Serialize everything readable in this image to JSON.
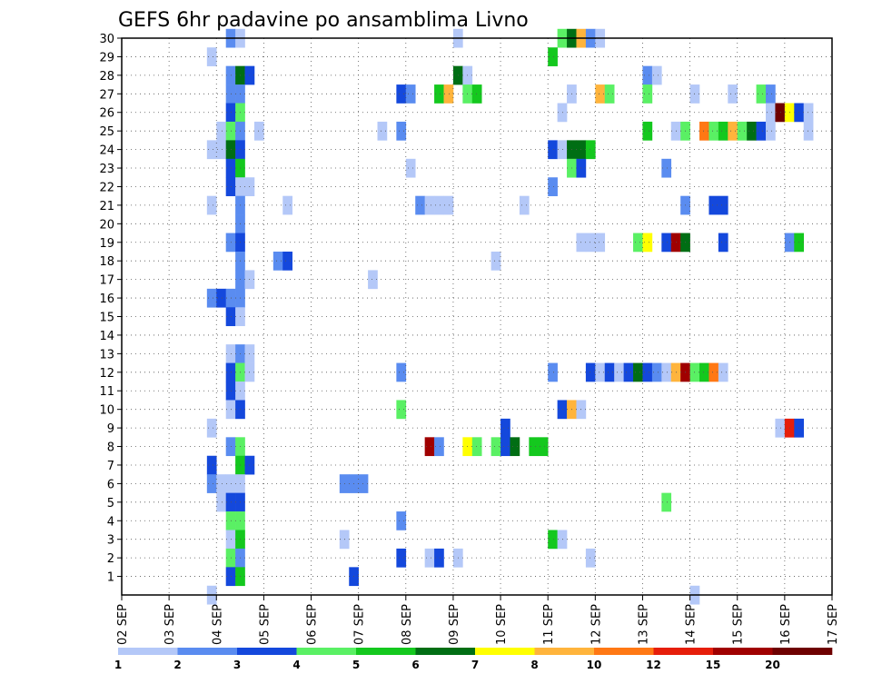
{
  "chart_data": {
    "type": "heatmap",
    "title": "GEFS 6hr padavine po ansamblima Livno",
    "y_labels": [
      "1",
      "2",
      "3",
      "4",
      "5",
      "6",
      "7",
      "8",
      "9",
      "10",
      "11",
      "12",
      "13",
      "14",
      "15",
      "16",
      "17",
      "18",
      "19",
      "20",
      "21",
      "22",
      "23",
      "24",
      "25",
      "26",
      "27",
      "28",
      "29",
      "30"
    ],
    "x_labels": [
      "02 SEP",
      "03 SEP",
      "04 SEP",
      "05 SEP",
      "06 SEP",
      "07 SEP",
      "08 SEP",
      "09 SEP",
      "10 SEP",
      "11 SEP",
      "12 SEP",
      "13 SEP",
      "14 SEP",
      "15 SEP",
      "16 SEP",
      "17 SEP"
    ],
    "grid": true,
    "legend": {
      "position": "bottom",
      "labels": [
        "1",
        "2",
        "3",
        "4",
        "5",
        "6",
        "7",
        "8",
        "10",
        "12",
        "15",
        "20"
      ],
      "colors": [
        "#b4c8f8",
        "#5a8cf0",
        "#1448dc",
        "#5af064",
        "#14c81e",
        "#006e14",
        "#ffff00",
        "#ffb43c",
        "#ff7814",
        "#e61e0a",
        "#a00000",
        "#6e0000"
      ]
    },
    "cells": [
      {
        "member": 30,
        "step": 11,
        "level": 2
      },
      {
        "member": 30,
        "step": 12,
        "level": 1
      },
      {
        "member": 30,
        "step": 35,
        "level": 1
      },
      {
        "member": 30,
        "step": 46,
        "level": 4
      },
      {
        "member": 30,
        "step": 47,
        "level": 6
      },
      {
        "member": 30,
        "step": 48,
        "level": 8
      },
      {
        "member": 30,
        "step": 49,
        "level": 2
      },
      {
        "member": 30,
        "step": 50,
        "level": 1
      },
      {
        "member": 29,
        "step": 9,
        "level": 1
      },
      {
        "member": 29,
        "step": 45,
        "level": 5
      },
      {
        "member": 28,
        "step": 11,
        "level": 2
      },
      {
        "member": 28,
        "step": 12,
        "level": 6
      },
      {
        "member": 28,
        "step": 13,
        "level": 3
      },
      {
        "member": 28,
        "step": 35,
        "level": 6
      },
      {
        "member": 28,
        "step": 36,
        "level": 1
      },
      {
        "member": 28,
        "step": 55,
        "level": 2
      },
      {
        "member": 28,
        "step": 56,
        "level": 1
      },
      {
        "member": 27,
        "step": 11,
        "level": 2
      },
      {
        "member": 27,
        "step": 12,
        "level": 2
      },
      {
        "member": 27,
        "step": 29,
        "level": 3
      },
      {
        "member": 27,
        "step": 30,
        "level": 2
      },
      {
        "member": 27,
        "step": 33,
        "level": 5
      },
      {
        "member": 27,
        "step": 34,
        "level": 8
      },
      {
        "member": 27,
        "step": 36,
        "level": 4
      },
      {
        "member": 27,
        "step": 37,
        "level": 5
      },
      {
        "member": 27,
        "step": 47,
        "level": 1
      },
      {
        "member": 27,
        "step": 50,
        "level": 8
      },
      {
        "member": 27,
        "step": 51,
        "level": 4
      },
      {
        "member": 27,
        "step": 55,
        "level": 4
      },
      {
        "member": 27,
        "step": 60,
        "level": 1
      },
      {
        "member": 27,
        "step": 64,
        "level": 1
      },
      {
        "member": 27,
        "step": 67,
        "level": 4
      },
      {
        "member": 27,
        "step": 68,
        "level": 2
      },
      {
        "member": 26,
        "step": 11,
        "level": 3
      },
      {
        "member": 26,
        "step": 12,
        "level": 4
      },
      {
        "member": 26,
        "step": 46,
        "level": 1
      },
      {
        "member": 26,
        "step": 68,
        "level": 1
      },
      {
        "member": 26,
        "step": 69,
        "level": 12
      },
      {
        "member": 26,
        "step": 70,
        "level": 7
      },
      {
        "member": 26,
        "step": 71,
        "level": 3
      },
      {
        "member": 26,
        "step": 72,
        "level": 1
      },
      {
        "member": 25,
        "step": 10,
        "level": 1
      },
      {
        "member": 25,
        "step": 11,
        "level": 4
      },
      {
        "member": 25,
        "step": 12,
        "level": 2
      },
      {
        "member": 25,
        "step": 14,
        "level": 1
      },
      {
        "member": 25,
        "step": 27,
        "level": 1
      },
      {
        "member": 25,
        "step": 29,
        "level": 2
      },
      {
        "member": 25,
        "step": 55,
        "level": 5
      },
      {
        "member": 25,
        "step": 58,
        "level": 1
      },
      {
        "member": 25,
        "step": 59,
        "level": 4
      },
      {
        "member": 25,
        "step": 61,
        "level": 9
      },
      {
        "member": 25,
        "step": 62,
        "level": 4
      },
      {
        "member": 25,
        "step": 63,
        "level": 5
      },
      {
        "member": 25,
        "step": 64,
        "level": 8
      },
      {
        "member": 25,
        "step": 65,
        "level": 4
      },
      {
        "member": 25,
        "step": 66,
        "level": 6
      },
      {
        "member": 25,
        "step": 67,
        "level": 3
      },
      {
        "member": 25,
        "step": 68,
        "level": 1
      },
      {
        "member": 25,
        "step": 72,
        "level": 1
      },
      {
        "member": 24,
        "step": 9,
        "level": 1
      },
      {
        "member": 24,
        "step": 10,
        "level": 1
      },
      {
        "member": 24,
        "step": 11,
        "level": 6
      },
      {
        "member": 24,
        "step": 12,
        "level": 3
      },
      {
        "member": 24,
        "step": 45,
        "level": 3
      },
      {
        "member": 24,
        "step": 46,
        "level": 1
      },
      {
        "member": 24,
        "step": 47,
        "level": 6
      },
      {
        "member": 24,
        "step": 48,
        "level": 6
      },
      {
        "member": 24,
        "step": 49,
        "level": 5
      },
      {
        "member": 23,
        "step": 11,
        "level": 3
      },
      {
        "member": 23,
        "step": 12,
        "level": 5
      },
      {
        "member": 23,
        "step": 30,
        "level": 1
      },
      {
        "member": 23,
        "step": 47,
        "level": 4
      },
      {
        "member": 23,
        "step": 48,
        "level": 3
      },
      {
        "member": 23,
        "step": 57,
        "level": 2
      },
      {
        "member": 22,
        "step": 11,
        "level": 3
      },
      {
        "member": 22,
        "step": 12,
        "level": 1
      },
      {
        "member": 22,
        "step": 13,
        "level": 1
      },
      {
        "member": 22,
        "step": 45,
        "level": 2
      },
      {
        "member": 21,
        "step": 9,
        "level": 1
      },
      {
        "member": 21,
        "step": 12,
        "level": 2
      },
      {
        "member": 21,
        "step": 17,
        "level": 1
      },
      {
        "member": 21,
        "step": 31,
        "level": 2
      },
      {
        "member": 21,
        "step": 32,
        "level": 1
      },
      {
        "member": 21,
        "step": 33,
        "level": 1
      },
      {
        "member": 21,
        "step": 34,
        "level": 1
      },
      {
        "member": 21,
        "step": 42,
        "level": 1
      },
      {
        "member": 21,
        "step": 59,
        "level": 2
      },
      {
        "member": 21,
        "step": 62,
        "level": 3
      },
      {
        "member": 21,
        "step": 63,
        "level": 3
      },
      {
        "member": 20,
        "step": 12,
        "level": 2
      },
      {
        "member": 19,
        "step": 11,
        "level": 2
      },
      {
        "member": 19,
        "step": 12,
        "level": 3
      },
      {
        "member": 19,
        "step": 48,
        "level": 1
      },
      {
        "member": 19,
        "step": 49,
        "level": 1
      },
      {
        "member": 19,
        "step": 50,
        "level": 1
      },
      {
        "member": 19,
        "step": 54,
        "level": 4
      },
      {
        "member": 19,
        "step": 55,
        "level": 7
      },
      {
        "member": 19,
        "step": 57,
        "level": 3
      },
      {
        "member": 19,
        "step": 58,
        "level": 11
      },
      {
        "member": 19,
        "step": 59,
        "level": 6
      },
      {
        "member": 19,
        "step": 63,
        "level": 3
      },
      {
        "member": 19,
        "step": 70,
        "level": 2
      },
      {
        "member": 19,
        "step": 71,
        "level": 5
      },
      {
        "member": 18,
        "step": 12,
        "level": 2
      },
      {
        "member": 18,
        "step": 16,
        "level": 2
      },
      {
        "member": 18,
        "step": 17,
        "level": 3
      },
      {
        "member": 18,
        "step": 39,
        "level": 1
      },
      {
        "member": 17,
        "step": 12,
        "level": 2
      },
      {
        "member": 17,
        "step": 13,
        "level": 1
      },
      {
        "member": 17,
        "step": 26,
        "level": 1
      },
      {
        "member": 16,
        "step": 9,
        "level": 2
      },
      {
        "member": 16,
        "step": 10,
        "level": 3
      },
      {
        "member": 16,
        "step": 11,
        "level": 2
      },
      {
        "member": 16,
        "step": 12,
        "level": 2
      },
      {
        "member": 15,
        "step": 11,
        "level": 3
      },
      {
        "member": 15,
        "step": 12,
        "level": 1
      },
      {
        "member": 13,
        "step": 11,
        "level": 1
      },
      {
        "member": 13,
        "step": 12,
        "level": 2
      },
      {
        "member": 13,
        "step": 13,
        "level": 1
      },
      {
        "member": 12,
        "step": 11,
        "level": 3
      },
      {
        "member": 12,
        "step": 12,
        "level": 4
      },
      {
        "member": 12,
        "step": 13,
        "level": 1
      },
      {
        "member": 12,
        "step": 29,
        "level": 2
      },
      {
        "member": 12,
        "step": 45,
        "level": 2
      },
      {
        "member": 12,
        "step": 49,
        "level": 3
      },
      {
        "member": 12,
        "step": 50,
        "level": 1
      },
      {
        "member": 12,
        "step": 51,
        "level": 3
      },
      {
        "member": 12,
        "step": 52,
        "level": 1
      },
      {
        "member": 12,
        "step": 53,
        "level": 3
      },
      {
        "member": 12,
        "step": 54,
        "level": 6
      },
      {
        "member": 12,
        "step": 55,
        "level": 3
      },
      {
        "member": 12,
        "step": 56,
        "level": 2
      },
      {
        "member": 12,
        "step": 57,
        "level": 1
      },
      {
        "member": 12,
        "step": 58,
        "level": 8
      },
      {
        "member": 12,
        "step": 59,
        "level": 11
      },
      {
        "member": 12,
        "step": 60,
        "level": 4
      },
      {
        "member": 12,
        "step": 61,
        "level": 5
      },
      {
        "member": 12,
        "step": 62,
        "level": 9
      },
      {
        "member": 12,
        "step": 63,
        "level": 1
      },
      {
        "member": 11,
        "step": 11,
        "level": 3
      },
      {
        "member": 11,
        "step": 12,
        "level": 1
      },
      {
        "member": 10,
        "step": 11,
        "level": 1
      },
      {
        "member": 10,
        "step": 12,
        "level": 3
      },
      {
        "member": 10,
        "step": 29,
        "level": 4
      },
      {
        "member": 10,
        "step": 46,
        "level": 3
      },
      {
        "member": 10,
        "step": 47,
        "level": 8
      },
      {
        "member": 10,
        "step": 48,
        "level": 1
      },
      {
        "member": 9,
        "step": 9,
        "level": 1
      },
      {
        "member": 9,
        "step": 40,
        "level": 3
      },
      {
        "member": 9,
        "step": 69,
        "level": 1
      },
      {
        "member": 9,
        "step": 70,
        "level": 10
      },
      {
        "member": 9,
        "step": 71,
        "level": 3
      },
      {
        "member": 8,
        "step": 11,
        "level": 2
      },
      {
        "member": 8,
        "step": 12,
        "level": 4
      },
      {
        "member": 8,
        "step": 32,
        "level": 11
      },
      {
        "member": 8,
        "step": 33,
        "level": 2
      },
      {
        "member": 8,
        "step": 36,
        "level": 7
      },
      {
        "member": 8,
        "step": 37,
        "level": 4
      },
      {
        "member": 8,
        "step": 39,
        "level": 4
      },
      {
        "member": 8,
        "step": 40,
        "level": 3
      },
      {
        "member": 8,
        "step": 41,
        "level": 6
      },
      {
        "member": 8,
        "step": 43,
        "level": 5
      },
      {
        "member": 8,
        "step": 44,
        "level": 5
      },
      {
        "member": 7,
        "step": 9,
        "level": 3
      },
      {
        "member": 7,
        "step": 12,
        "level": 5
      },
      {
        "member": 7,
        "step": 13,
        "level": 3
      },
      {
        "member": 6,
        "step": 9,
        "level": 2
      },
      {
        "member": 6,
        "step": 10,
        "level": 1
      },
      {
        "member": 6,
        "step": 11,
        "level": 1
      },
      {
        "member": 6,
        "step": 12,
        "level": 1
      },
      {
        "member": 6,
        "step": 23,
        "level": 2
      },
      {
        "member": 6,
        "step": 24,
        "level": 2
      },
      {
        "member": 6,
        "step": 25,
        "level": 2
      },
      {
        "member": 5,
        "step": 10,
        "level": 1
      },
      {
        "member": 5,
        "step": 11,
        "level": 3
      },
      {
        "member": 5,
        "step": 12,
        "level": 3
      },
      {
        "member": 5,
        "step": 57,
        "level": 4
      },
      {
        "member": 4,
        "step": 11,
        "level": 4
      },
      {
        "member": 4,
        "step": 12,
        "level": 4
      },
      {
        "member": 4,
        "step": 29,
        "level": 2
      },
      {
        "member": 3,
        "step": 11,
        "level": 1
      },
      {
        "member": 3,
        "step": 12,
        "level": 5
      },
      {
        "member": 3,
        "step": 23,
        "level": 1
      },
      {
        "member": 3,
        "step": 45,
        "level": 5
      },
      {
        "member": 3,
        "step": 46,
        "level": 1
      },
      {
        "member": 2,
        "step": 11,
        "level": 4
      },
      {
        "member": 2,
        "step": 12,
        "level": 2
      },
      {
        "member": 2,
        "step": 29,
        "level": 3
      },
      {
        "member": 2,
        "step": 32,
        "level": 1
      },
      {
        "member": 2,
        "step": 33,
        "level": 3
      },
      {
        "member": 2,
        "step": 35,
        "level": 1
      },
      {
        "member": 2,
        "step": 49,
        "level": 1
      },
      {
        "member": 1,
        "step": 11,
        "level": 3
      },
      {
        "member": 1,
        "step": 12,
        "level": 5
      },
      {
        "member": 1,
        "step": 24,
        "level": 3
      },
      {
        "member": 0,
        "step": 9,
        "level": 1
      },
      {
        "member": 0,
        "step": 60,
        "level": 1
      }
    ]
  }
}
